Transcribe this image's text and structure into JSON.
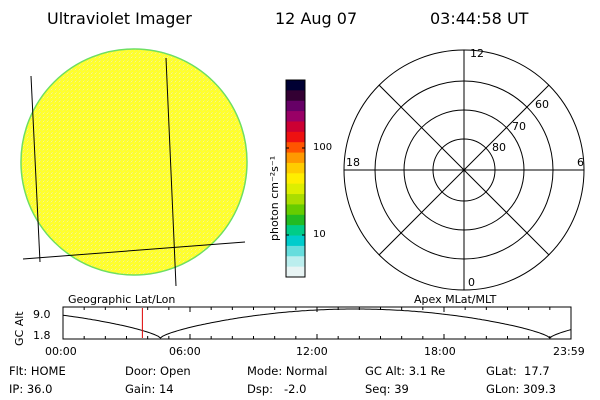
{
  "header": {
    "instrument": "Ultraviolet Imager",
    "date": "12 Aug 07",
    "time": "03:44:58 UT"
  },
  "geo_panel": {
    "label": "Geographic Lat/Lon"
  },
  "colorbar": {
    "unit_label": "photon cm⁻²s⁻¹",
    "ticks": [
      "100",
      "10"
    ],
    "colors": [
      "#000033",
      "#330033",
      "#660066",
      "#990066",
      "#cc0033",
      "#ee1111",
      "#ff5500",
      "#ff9900",
      "#ffcc00",
      "#ffee00",
      "#ddee00",
      "#aadd00",
      "#66cc00",
      "#22bb22",
      "#00cc88",
      "#00cccc",
      "#66dddd",
      "#bbeeee",
      "#e8f4f4"
    ]
  },
  "apex_panel": {
    "label": "Apex MLat/MLT",
    "mlt_labels": {
      "top": "12",
      "left": "18",
      "right": "6",
      "bottom": "0"
    },
    "lat_labels": [
      "60",
      "70",
      "80"
    ]
  },
  "altitude_plot": {
    "ylabel": "GC Alt",
    "yticks": [
      "9.0",
      "1.8"
    ],
    "xticks": [
      "00:00",
      "06:00",
      "12:00",
      "18:00",
      "23:59"
    ],
    "current_marker_hours": 3.75
  },
  "info": {
    "row1": {
      "filter": "Flt: HOME",
      "door": "Door: Open",
      "mode": "Mode: Normal",
      "gc_alt": "GC Alt: 3.1 Re",
      "glat": "GLat:  17.7"
    },
    "row2": {
      "ip": "IP: 36.0",
      "gain": "Gain: 14",
      "dsp": "Dsp:   -2.0",
      "seq": "Seq: 39",
      "glon": "GLon: 309.3"
    }
  },
  "colors": {
    "disk_fill": "#ffff33",
    "disk_edge": "#66dd66",
    "marker": "#dd0000"
  }
}
